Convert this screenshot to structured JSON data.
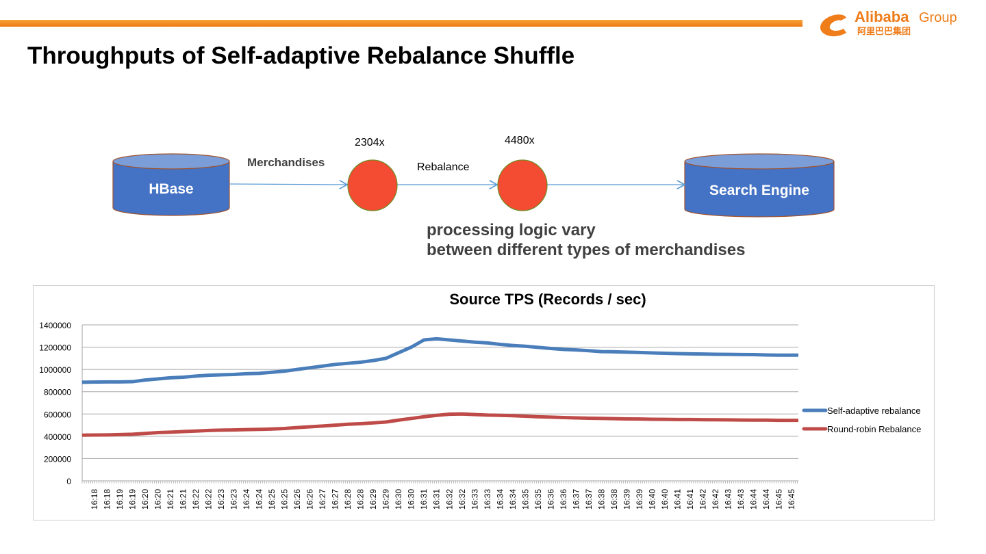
{
  "slide": {
    "title": "Throughputs of Self-adaptive Rebalance Shuffle",
    "logo": {
      "text": "Alibaba Group",
      "cn": "阿里巴巴集团"
    },
    "accent_color": "#ee7d1a"
  },
  "diagram": {
    "source": "HBase",
    "sink": "Search Engine",
    "edge1_label": "Merchandises",
    "edge2_label": "Rebalance",
    "node1_parallelism": "2304x",
    "node2_parallelism": "4480x",
    "note_line1": "processing logic vary",
    "note_line2": "between different types of merchandises",
    "cylinder_color": "#4472c4",
    "node_color": "#f44b33"
  },
  "chart_data": {
    "type": "line",
    "title": "Source TPS (Records / sec)",
    "ylim": [
      0,
      1400000
    ],
    "yticks": [
      "0",
      "200000",
      "400000",
      "600000",
      "800000",
      "1000000",
      "1200000",
      "1400000"
    ],
    "grid": true,
    "legend": "right",
    "categories": [
      "16:18",
      "16:18",
      "16:19",
      "16:19",
      "16:20",
      "16:20",
      "16:21",
      "16:21",
      "16:22",
      "16:22",
      "16:23",
      "16:23",
      "16:24",
      "16:24",
      "16:25",
      "16:25",
      "16:26",
      "16:26",
      "16:27",
      "16:27",
      "16:28",
      "16:28",
      "16:29",
      "16:29",
      "16:30",
      "16:30",
      "16:31",
      "16:31",
      "16:32",
      "16:32",
      "16:33",
      "16:33",
      "16:34",
      "16:34",
      "16:35",
      "16:35",
      "16:36",
      "16:36",
      "16:37",
      "16:37",
      "16:38",
      "16:38",
      "16:39",
      "16:39",
      "16:40",
      "16:40",
      "16:41",
      "16:41",
      "16:42",
      "16:42",
      "16:43",
      "16:43",
      "16:44",
      "16:44",
      "16:45",
      "16:45"
    ],
    "series": [
      {
        "name": "Self-adaptive rebalance",
        "color": "#4a7ebb",
        "values": [
          885000,
          888000,
          888000,
          890000,
          905000,
          915000,
          925000,
          930000,
          940000,
          948000,
          952000,
          955000,
          962000,
          965000,
          975000,
          985000,
          1000000,
          1015000,
          1030000,
          1045000,
          1055000,
          1065000,
          1080000,
          1100000,
          1150000,
          1200000,
          1265000,
          1275000,
          1265000,
          1255000,
          1245000,
          1238000,
          1225000,
          1215000,
          1208000,
          1198000,
          1188000,
          1180000,
          1175000,
          1168000,
          1160000,
          1158000,
          1155000,
          1152000,
          1148000,
          1145000,
          1142000,
          1140000,
          1138000,
          1136000,
          1135000,
          1134000,
          1133000,
          1130000,
          1128000,
          1128000
        ]
      },
      {
        "name": "Round-robin Rebalance",
        "color": "#be4b48",
        "values": [
          410000,
          412000,
          415000,
          418000,
          425000,
          433000,
          437000,
          442000,
          447000,
          452000,
          455000,
          457000,
          460000,
          462000,
          465000,
          470000,
          478000,
          485000,
          492000,
          500000,
          508000,
          513000,
          520000,
          528000,
          545000,
          560000,
          575000,
          588000,
          598000,
          600000,
          595000,
          590000,
          588000,
          585000,
          580000,
          575000,
          572000,
          568000,
          565000,
          562000,
          560000,
          558000,
          556000,
          555000,
          553000,
          552000,
          550000,
          550000,
          549000,
          548000,
          547000,
          546000,
          545000,
          545000,
          543000,
          543000
        ]
      }
    ]
  }
}
